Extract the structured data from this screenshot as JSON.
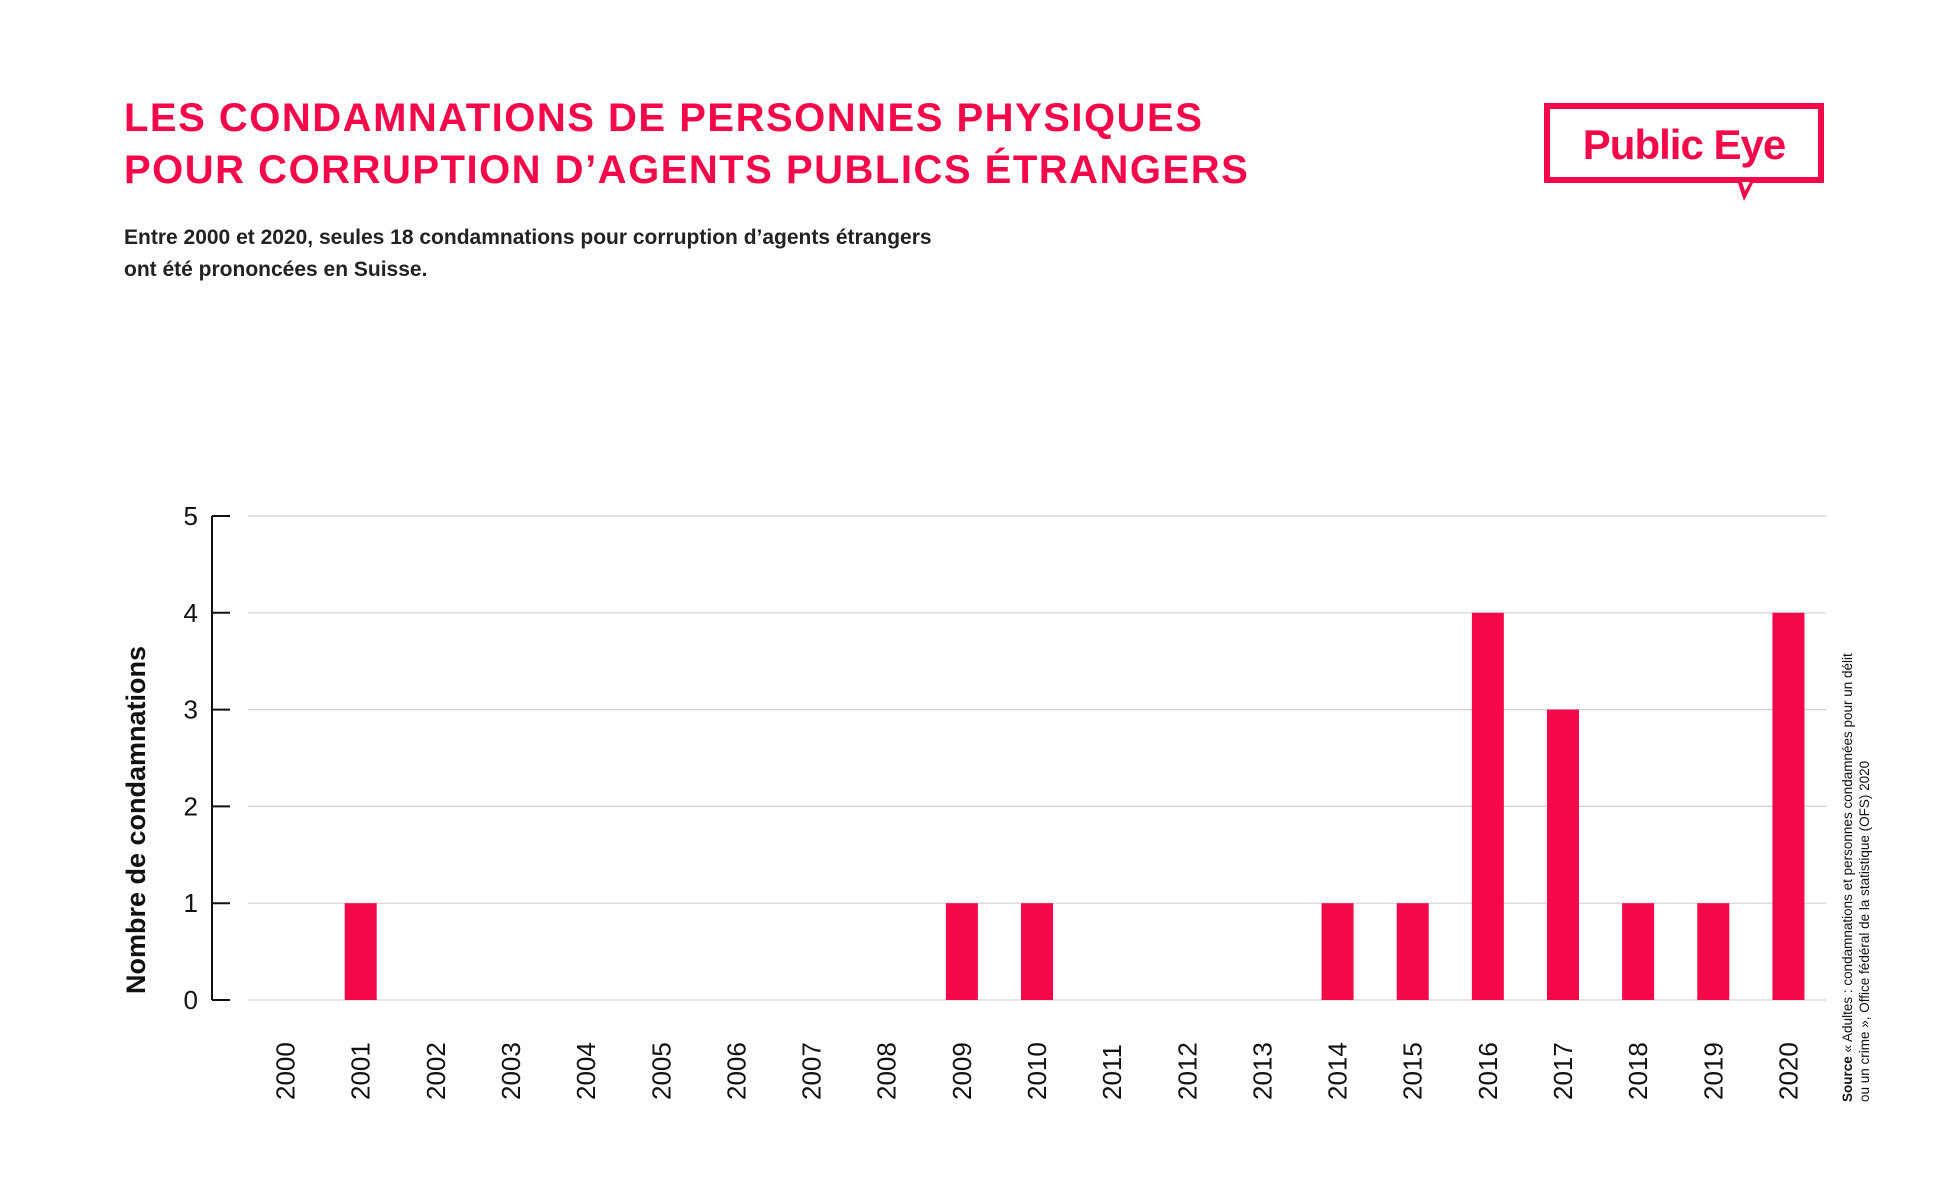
{
  "header": {
    "title_lines": [
      "LES CONDAMNATIONS DE PERSONNES PHYSIQUES",
      "POUR CORRUPTION D’AGENTS PUBLICS ÉTRANGERS"
    ],
    "subtitle_lines": [
      "Entre 2000 et 2020, seules 18 condamnations pour corruption d’agents étrangers",
      "ont été prononcées en Suisse."
    ],
    "logo_text": "Public Eye"
  },
  "colors": {
    "accent": "#f5084a",
    "text": "#111111",
    "grid": "#d0d0d0"
  },
  "source": {
    "label": "Source",
    "line1": " « Adultes : condamnations et personnes condamnées pour un délit",
    "line2": "ou un crime », Office fédéral de la statistique (OFS) 2020"
  },
  "chart_data": {
    "type": "bar",
    "title": "LES CONDAMNATIONS DE PERSONNES PHYSIQUES POUR CORRUPTION D’AGENTS PUBLICS ÉTRANGERS",
    "xlabel": "",
    "ylabel": "Nombre de condamnations",
    "categories": [
      "2000",
      "2001",
      "2002",
      "2003",
      "2004",
      "2005",
      "2006",
      "2007",
      "2008",
      "2009",
      "2010",
      "2011",
      "2012",
      "2013",
      "2014",
      "2015",
      "2016",
      "2017",
      "2018",
      "2019",
      "2020"
    ],
    "values": [
      0,
      1,
      0,
      0,
      0,
      0,
      0,
      0,
      0,
      1,
      1,
      0,
      0,
      0,
      1,
      1,
      4,
      3,
      1,
      1,
      4
    ],
    "ylim": [
      0,
      5
    ],
    "yticks": [
      0,
      1,
      2,
      3,
      4,
      5
    ],
    "grid": true,
    "legend": "none"
  }
}
